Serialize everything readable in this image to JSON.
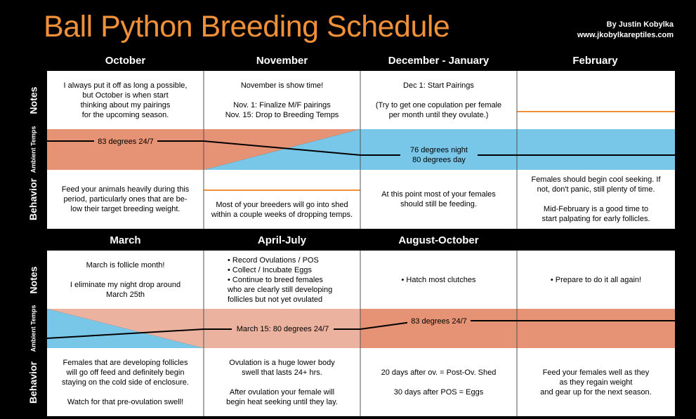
{
  "title": "Ball Python Breeding Schedule",
  "credit": {
    "author": "By Justin Kobylka",
    "url": "www.jkobylkareptiles.com"
  },
  "row_labels": {
    "notes": "Notes",
    "ambient": "Ambient\nTemps",
    "behavior": "Behavior"
  },
  "colors": {
    "title": "#f0913a",
    "warm": "#e59374",
    "warm_light": "#ebb29f",
    "cool": "#79c7e8",
    "orange_line": "#f0913a"
  },
  "top": {
    "months": [
      "October",
      "November",
      "December - January",
      "February"
    ],
    "notes": [
      "I always put it off as long a possible,\nbut October is when start\nthinking about my pairings\nfor the upcoming season.",
      "November is show time!\n\nNov. 1:  Finalize M/F pairings\nNov. 15:  Drop to Breeding Temps",
      "Dec 1:  Start Pairings\n\n(Try to get one copulation per female\nper month until they ovulate.)",
      ""
    ],
    "temps": {
      "warm": "83 degrees 24/7",
      "cool": "76 degrees night\n80 degrees day"
    },
    "behavior": [
      "Feed your animals heavily during this\nperiod, particularly ones that are be-\nlow their target breeding weight.",
      "Most of your breeders will go into shed\nwithin a couple weeks of dropping temps.",
      "At this point most of your females\nshould still be feeding.",
      "Females should begin cool seeking.  If\nnot, don't panic, still plenty of time.\n\nMid-February is a good time to\nstart palpating for early follicles."
    ]
  },
  "bottom": {
    "months": [
      "March",
      "April-July",
      "August-October",
      ""
    ],
    "notes": [
      "March is follicle month!\n\nI eliminate my night drop around\nMarch 25th",
      "• Record Ovulations  / POS\n• Collect / Incubate Eggs\n• Continue to breed females\n   who are clearly still developing\n   follicles but not yet ovulated",
      "• Hatch most clutches",
      "• Prepare to do it all again!"
    ],
    "temps": {
      "march": "March 15:  80 degrees 24/7",
      "warm": "83 degrees 24/7"
    },
    "behavior": [
      "Females that are developing follicles\nwill go off feed and definitely begin\nstaying on the cold side of enclosure.\n\nWatch for that pre-ovulation swell!",
      "Ovulation is a huge lower body\nswell that lasts 24+ hrs.\n\nAfter ovulation your female will\nbegin heat seeking until they lay.",
      "20 days after ov. = Post-Ov. Shed\n\n30 days after POS = Eggs",
      "Feed your females well as they\nas they regain weight\nand gear up for the next season."
    ]
  }
}
